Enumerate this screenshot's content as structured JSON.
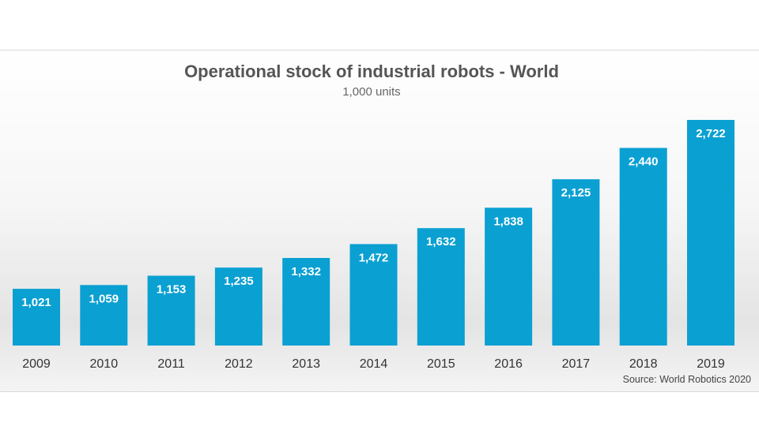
{
  "chart_data": {
    "type": "bar",
    "title": "Operational stock of industrial robots - World",
    "subtitle": "1,000 units",
    "source": "Source: World Robotics 2020",
    "categories": [
      "2009",
      "2010",
      "2011",
      "2012",
      "2013",
      "2014",
      "2015",
      "2016",
      "2017",
      "2018",
      "2019"
    ],
    "values": [
      1021,
      1059,
      1153,
      1235,
      1332,
      1472,
      1632,
      1838,
      2125,
      2440,
      2722
    ],
    "value_labels": [
      "1,021",
      "1,059",
      "1,153",
      "1,235",
      "1,332",
      "1,472",
      "1,632",
      "1,838",
      "2,125",
      "2,440",
      "2,722"
    ],
    "bar_color": "#0aa0d2",
    "grid": false,
    "legend": "none"
  }
}
